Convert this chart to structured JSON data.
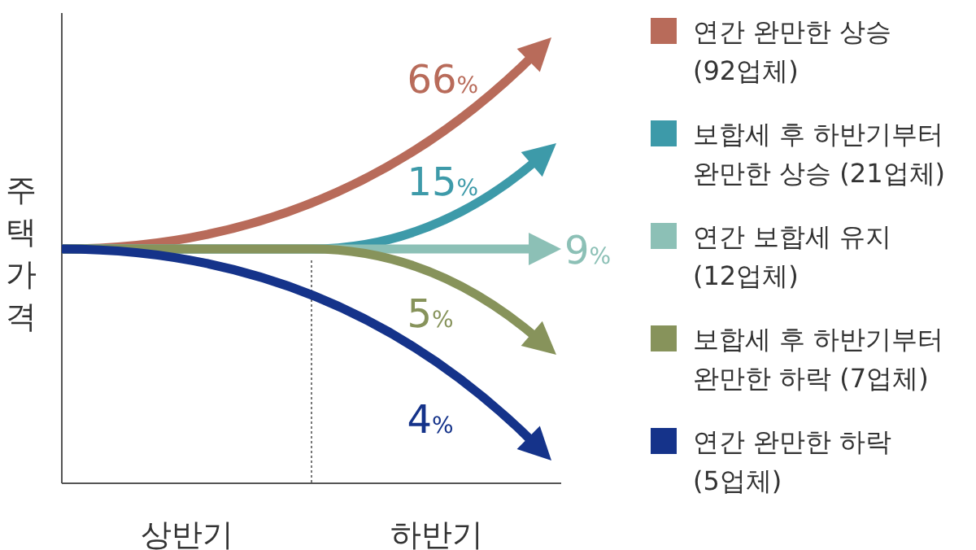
{
  "chart_data": {
    "type": "other",
    "ylabel": "주택가격",
    "categories": [
      "상반기",
      "하반기"
    ],
    "legend": "right",
    "data_labels": true,
    "series": [
      {
        "name": "연간 완만한 상승 (92업체)",
        "color": "#b86b5a",
        "values": [
          null,
          66
        ],
        "value_labels": [
          null,
          "66%"
        ]
      },
      {
        "name": "보합세 후 하반기부터 완만한 상승 (21업체)",
        "color": "#3d9aa9",
        "values": [
          null,
          15
        ],
        "value_labels": [
          null,
          "15%"
        ]
      },
      {
        "name": "연간 보합세 유지 (12업체)",
        "color": "#8cc0b6",
        "values": [
          null,
          9
        ],
        "value_labels": [
          null,
          "9%"
        ]
      },
      {
        "name": "보합세 후 하반기부터 완만한 하락 (7업체)",
        "color": "#87935b",
        "values": [
          null,
          5
        ],
        "value_labels": [
          null,
          "5%"
        ]
      },
      {
        "name": "연간 완만한 하락 (5업체)",
        "color": "#15338a",
        "values": [
          null,
          4
        ],
        "value_labels": [
          null,
          "4%"
        ]
      }
    ]
  }
}
